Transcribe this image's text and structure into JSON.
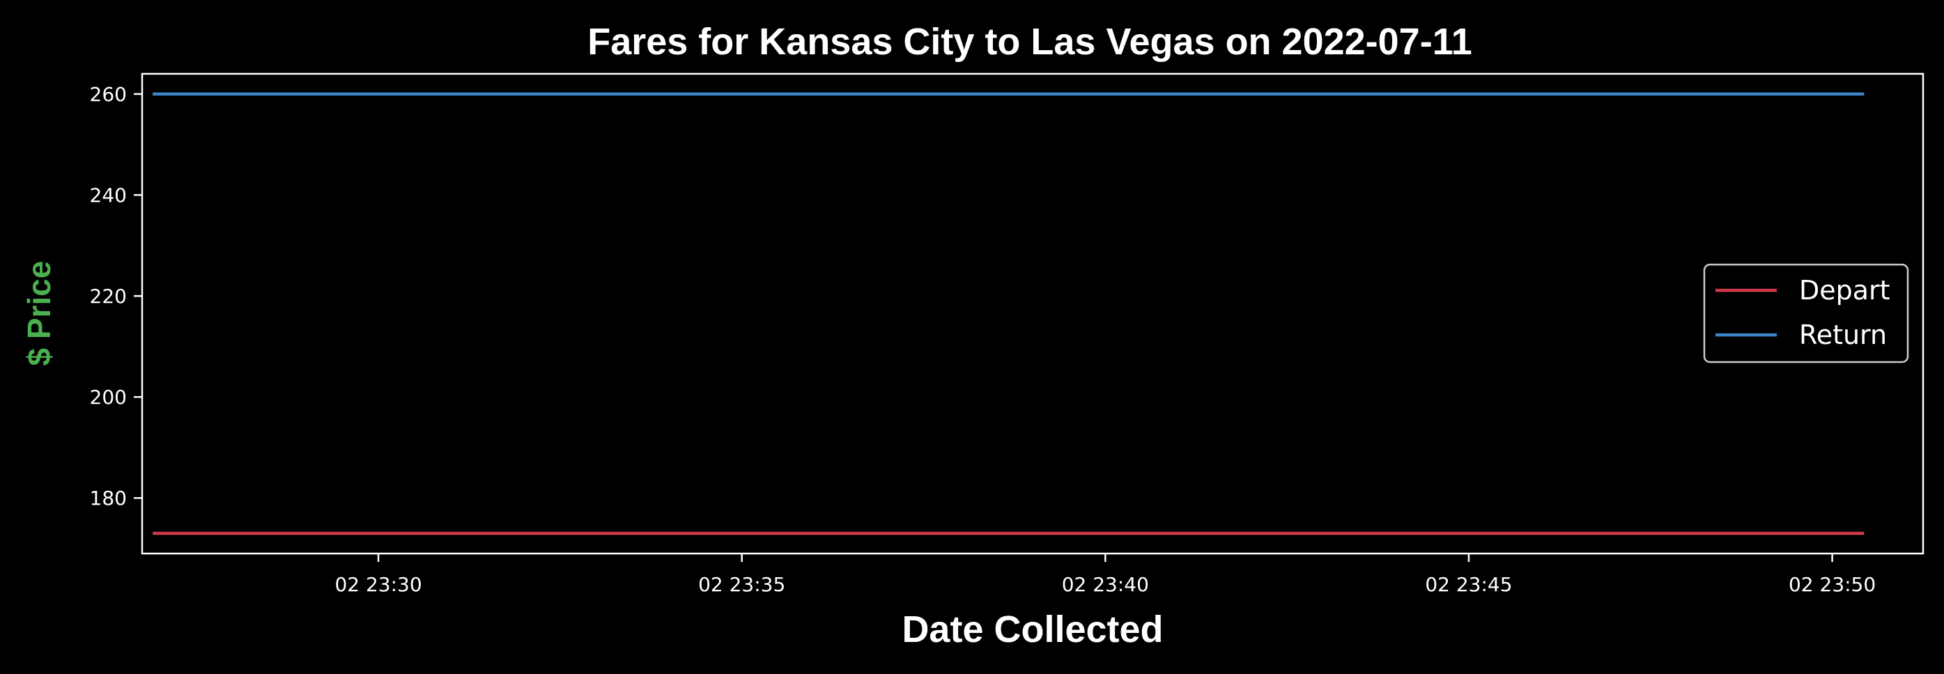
{
  "chart_data": {
    "type": "line",
    "title": "Fares for Kansas City to Las Vegas on 2022-07-11",
    "xlabel": "Date Collected",
    "ylabel": "$ Price",
    "x_range": [
      "02 23:26:45",
      "02 23:51:15"
    ],
    "x_ticks": [
      {
        "value": "02 23:30:00",
        "label": "02 23:30"
      },
      {
        "value": "02 23:35:00",
        "label": "02 23:35"
      },
      {
        "value": "02 23:40:00",
        "label": "02 23:40"
      },
      {
        "value": "02 23:45:00",
        "label": "02 23:45"
      },
      {
        "value": "02 23:50:00",
        "label": "02 23:50"
      }
    ],
    "ylim": [
      169,
      264
    ],
    "y_ticks": [
      180,
      200,
      220,
      240,
      260
    ],
    "grid": false,
    "legend_position": "center-right",
    "series": [
      {
        "name": "Depart",
        "color": "#d03a4a",
        "x": [
          "02 23:26:55",
          "02 23:50:25"
        ],
        "values": [
          173,
          173
        ]
      },
      {
        "name": "Return",
        "color": "#3a86c8",
        "x": [
          "02 23:26:55",
          "02 23:50:25"
        ],
        "values": [
          260,
          260
        ]
      }
    ],
    "colors": {
      "background": "#000000",
      "axes": "#ffffff",
      "text": "#ffffff",
      "ylabel": "#4caf50"
    }
  }
}
